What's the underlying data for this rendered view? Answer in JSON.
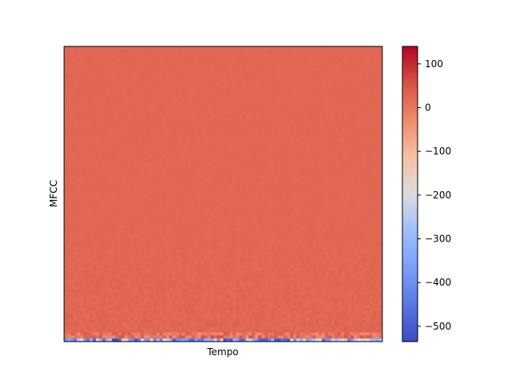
{
  "chart_data": {
    "type": "heatmap",
    "title": "",
    "xlabel": "Tempo",
    "ylabel": "MFCC",
    "colormap": "coolwarm",
    "colorbar": {
      "range": [
        -535,
        140
      ],
      "ticks": [
        100,
        0,
        -100,
        -200,
        -300,
        -400,
        -500
      ],
      "tick_labels": [
        "100",
        "0",
        "−100",
        "−200",
        "−300",
        "−400",
        "−500"
      ]
    },
    "grid": false,
    "x_ticks": [],
    "y_ticks": [],
    "dominant_value": 25,
    "bottom_rows_approx": {
      "row0_range": [
        -535,
        -150
      ],
      "row1_range": [
        -40,
        60
      ],
      "row2_range": [
        -30,
        45
      ]
    }
  }
}
